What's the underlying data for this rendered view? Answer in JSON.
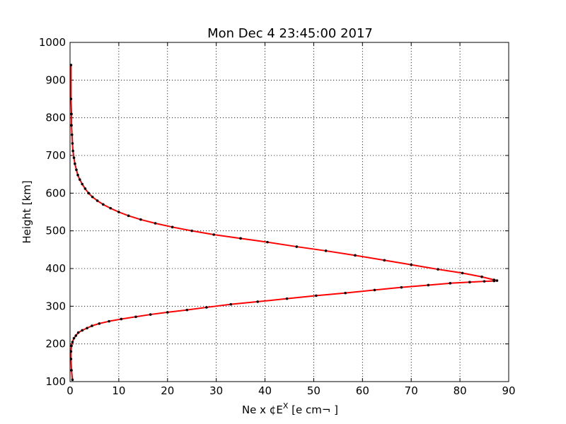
{
  "chart_data": {
    "type": "line",
    "title": "Mon Dec  4 23:45:00 2017",
    "xlabel_main": "Ne x ¢E",
    "xlabel_sup": "X",
    "xlabel_tail": "  [e cm¬ ]",
    "ylabel": "Height [km]",
    "xlim": [
      0,
      90
    ],
    "ylim": [
      100,
      1000
    ],
    "xticks": [
      "0",
      "10",
      "20",
      "30",
      "40",
      "50",
      "60",
      "70",
      "80",
      "90"
    ],
    "yticks": [
      "100",
      "200",
      "300",
      "400",
      "500",
      "600",
      "700",
      "800",
      "900",
      "1000"
    ],
    "grid": true,
    "line_color": "#ff0000",
    "marker_color": "#000000",
    "series": [
      {
        "x": [
          0.5,
          0.3,
          0.2,
          0.2,
          0.3,
          0.5,
          0.8,
          1.2,
          1.7,
          2.5,
          3.5,
          4.5,
          6.0,
          8.0,
          10.5,
          13.5,
          16.5,
          20.0,
          24.0,
          28.0,
          33.0,
          38.5,
          44.5,
          50.5,
          56.5,
          62.5,
          68.0,
          73.5,
          78.0,
          82.0,
          85.0,
          87.0,
          87.6,
          87.0,
          84.5,
          80.5,
          75.5,
          70.0,
          64.5,
          58.5,
          52.5,
          46.5,
          40.5,
          35.0,
          29.5,
          25.0,
          21.0,
          17.5,
          14.5,
          12.0,
          10.0,
          8.3,
          6.8,
          5.6,
          4.6,
          3.8,
          3.1,
          2.5,
          2.0,
          1.6,
          1.3,
          1.0,
          0.8,
          0.6,
          0.5,
          0.4,
          0.3,
          0.3,
          0.2,
          0.2
        ],
        "y": [
          105,
          130,
          160,
          180,
          195,
          205,
          215,
          222,
          230,
          236,
          242,
          248,
          254,
          260,
          266,
          272,
          278,
          284,
          290,
          297,
          305,
          312,
          320,
          328,
          335,
          343,
          350,
          356,
          361,
          364,
          366,
          367,
          368,
          370,
          378,
          388,
          398,
          410,
          422,
          435,
          447,
          458,
          470,
          480,
          490,
          500,
          510,
          520,
          530,
          540,
          550,
          560,
          570,
          580,
          590,
          600,
          612,
          624,
          636,
          648,
          662,
          678,
          694,
          712,
          732,
          755,
          780,
          810,
          850,
          940
        ]
      }
    ]
  }
}
